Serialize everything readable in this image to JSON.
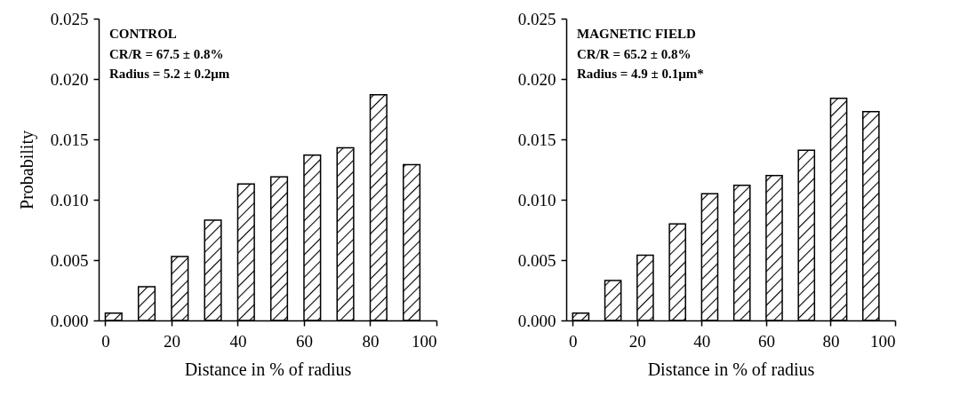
{
  "chart_data": [
    {
      "type": "bar",
      "xlabel": "Distance in % of radius",
      "ylabel": "Probability",
      "annotations": [
        "CONTROL",
        "CR/R = 67.5 ± 0.8%",
        "Radius = 5.2 ± 0.2μm"
      ],
      "x": [
        2.5,
        12.5,
        22.5,
        32.5,
        42.5,
        52.5,
        62.5,
        72.5,
        82.5,
        92.5
      ],
      "values": [
        0.0006,
        0.0028,
        0.0053,
        0.0083,
        0.0113,
        0.0119,
        0.0137,
        0.0143,
        0.0187,
        0.0129
      ],
      "color": "#000000",
      "xlim": [
        -2,
        100
      ],
      "xticks": [
        0,
        20,
        40,
        60,
        80,
        100
      ],
      "ylim": [
        0,
        0.025
      ],
      "yticks": [
        {
          "value": 0,
          "label": "0.000"
        },
        {
          "value": 0.005,
          "label": "0.005"
        },
        {
          "value": 0.01,
          "label": "0.010"
        },
        {
          "value": 0.015,
          "label": "0.015"
        },
        {
          "value": 0.02,
          "label": "0.020"
        },
        {
          "value": 0.025,
          "label": "0.025"
        }
      ],
      "grid": false
    },
    {
      "type": "bar",
      "xlabel": "Distance in % of radius",
      "annotations": [
        "MAGNETIC FIELD",
        "CR/R = 65.2 ± 0.8%",
        "Radius = 4.9 ± 0.1μm*"
      ],
      "x": [
        2.5,
        12.5,
        22.5,
        32.5,
        42.5,
        52.5,
        62.5,
        72.5,
        82.5,
        92.5
      ],
      "values": [
        0.0006,
        0.0033,
        0.0054,
        0.008,
        0.0105,
        0.0112,
        0.012,
        0.0141,
        0.0184,
        0.0173
      ],
      "color": "#000000",
      "xlim": [
        -2,
        100
      ],
      "xticks": [
        0,
        20,
        40,
        60,
        80,
        100
      ],
      "ylim": [
        0,
        0.025
      ],
      "yticks": [
        {
          "value": 0,
          "label": "0.000"
        },
        {
          "value": 0.005,
          "label": "0.005"
        },
        {
          "value": 0.01,
          "label": "0.010"
        },
        {
          "value": 0.015,
          "label": "0.015"
        },
        {
          "value": 0.02,
          "label": "0.020"
        },
        {
          "value": 0.025,
          "label": "0.025"
        }
      ],
      "grid": false
    }
  ]
}
